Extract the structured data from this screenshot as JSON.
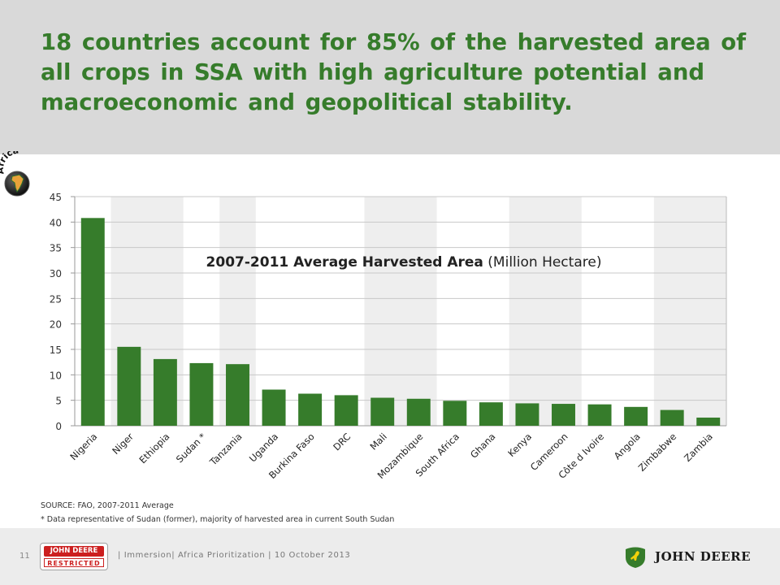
{
  "slide": {
    "title": "18 countries account for 85% of the harvested area of all crops in SSA with high agriculture potential and macroeconomic and geopolitical stability.",
    "logo_text": "Africa",
    "source": "SOURCE: FAO, 2007-2011 Average",
    "note": "* Data representative of Sudan (former), majority of harvested area in current South Sudan"
  },
  "footer": {
    "page_number": "11",
    "badge_top": "JOHN DEERE",
    "badge_bottom": "RESTRICTED",
    "text": "| Immersion| Africa Prioritization | 10 October 2013",
    "brand": "JOHN DEERE"
  },
  "colors": {
    "bar": "#367c2b",
    "title": "#367c2b",
    "header_bg": "#d9d9d9",
    "band": "#eeeeee"
  },
  "icons": [
    "africa-globe-icon",
    "deer-logo-icon"
  ],
  "chart_data": {
    "type": "bar",
    "title_bold": "2007-2011 Average Harvested Area",
    "title_unit": "(Million Hectare)",
    "categories": [
      "Nigeria",
      "Niger",
      "Ethiopia",
      "Sudan *",
      "Tanzania",
      "Uganda",
      "Burkina Faso",
      "DRC",
      "Mali",
      "Mozambique",
      "South Africa",
      "Ghana",
      "Kenya",
      "Cameroon",
      "Côte d Ivoire",
      "Angola",
      "Zimbabwe",
      "Zambia"
    ],
    "values": [
      40.8,
      15.5,
      13.1,
      12.3,
      12.1,
      7.1,
      6.3,
      6.0,
      5.5,
      5.3,
      4.9,
      4.6,
      4.4,
      4.3,
      4.2,
      3.7,
      3.1,
      1.6
    ],
    "ylim": [
      0,
      45
    ],
    "yticks": [
      "0",
      "5",
      "10",
      "15",
      "20",
      "25",
      "30",
      "35",
      "40",
      "45"
    ],
    "grid": true,
    "shaded_category_bands": [
      [
        1,
        2
      ],
      [
        4,
        4
      ],
      [
        8,
        9
      ],
      [
        12,
        13
      ],
      [
        16,
        17
      ]
    ]
  }
}
